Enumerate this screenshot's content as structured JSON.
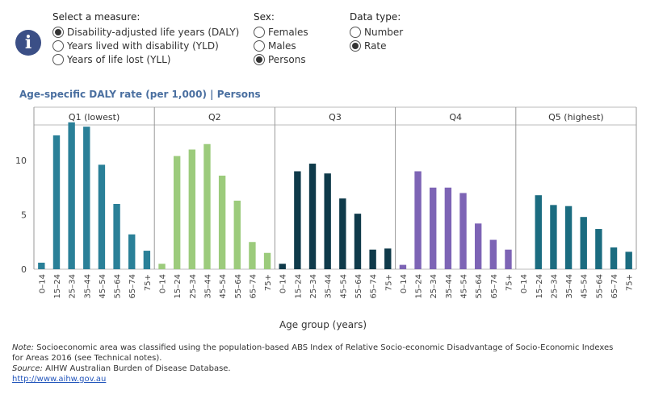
{
  "controls": {
    "measure": {
      "title": "Select a measure:",
      "options": [
        {
          "label": "Disability-adjusted life years (DALY)",
          "checked": true
        },
        {
          "label": "Years lived with disability (YLD)",
          "checked": false
        },
        {
          "label": "Years of life lost (YLL)",
          "checked": false
        }
      ]
    },
    "sex": {
      "title": "Sex:",
      "options": [
        {
          "label": "Females",
          "checked": false
        },
        {
          "label": "Males",
          "checked": false
        },
        {
          "label": "Persons",
          "checked": true
        }
      ]
    },
    "data_type": {
      "title": "Data type:",
      "options": [
        {
          "label": "Number",
          "checked": false
        },
        {
          "label": "Rate",
          "checked": true
        }
      ]
    }
  },
  "info_icon": {
    "glyph": "i",
    "icon": "info-icon"
  },
  "chart_data": {
    "type": "bar",
    "title": "Age-specific DALY rate (per 1,000) | Persons",
    "xlabel": "Age group (years)",
    "ylabel": "",
    "ylim": [
      0,
      14
    ],
    "yticks": [
      0,
      5,
      10
    ],
    "categories": [
      "0–14",
      "15–24",
      "25–34",
      "35–44",
      "45–54",
      "55–64",
      "65–74",
      "75+"
    ],
    "panels": [
      {
        "name": "Q1 (lowest)",
        "color": "#2a8098",
        "values": [
          0.6,
          12.3,
          13.5,
          13.1,
          9.6,
          6.0,
          3.2,
          1.7
        ]
      },
      {
        "name": "Q2",
        "color": "#9ccb7c",
        "values": [
          0.5,
          10.4,
          11.0,
          11.5,
          8.6,
          6.3,
          2.5,
          1.5
        ]
      },
      {
        "name": "Q3",
        "color": "#0f3a4a",
        "values": [
          0.5,
          9.0,
          9.7,
          8.8,
          6.5,
          5.1,
          1.8,
          1.9
        ]
      },
      {
        "name": "Q4",
        "color": "#7d64b5",
        "values": [
          0.4,
          9.0,
          7.5,
          7.5,
          7.0,
          4.2,
          2.7,
          1.8
        ]
      },
      {
        "name": "Q5 (highest)",
        "color": "#1b6c80",
        "values": [
          0.0,
          6.8,
          5.9,
          5.8,
          4.8,
          3.7,
          2.0,
          1.6
        ]
      }
    ],
    "grid": false,
    "legend": "none"
  },
  "notes": {
    "note_label": "Note:",
    "note_text": " Socioeconomic area was classified using the population-based ABS Index of Relative Socio-economic Disadvantage of  Socio-Economic Indexes",
    "note_text2": "for Areas 2016 (see Technical notes).",
    "source_label": "Source:",
    "source_text": " AIHW Australian Burden of Disease Database.",
    "link": "http://www.aihw.gov.au"
  }
}
